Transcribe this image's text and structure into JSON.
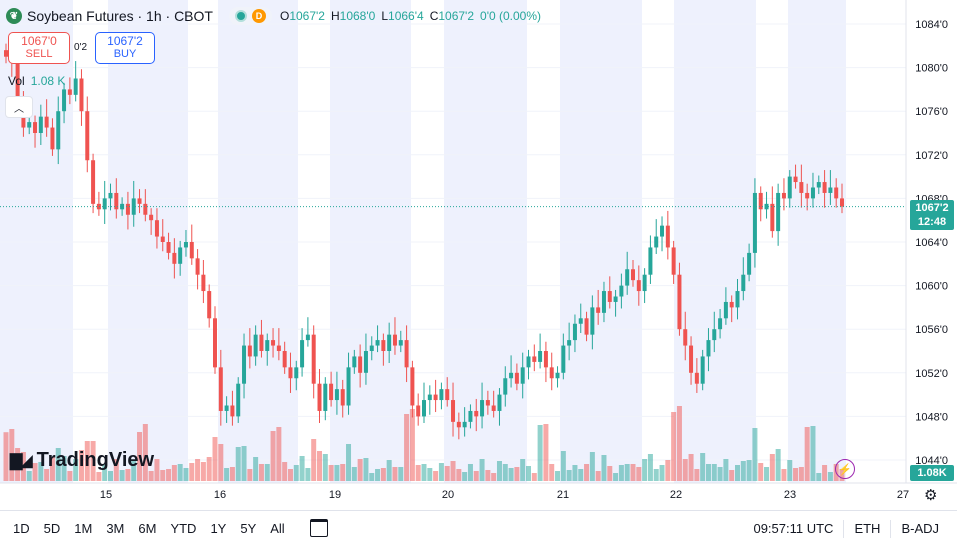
{
  "header": {
    "symbol_logo": "leaf-icon",
    "title": "Soybean Futures · 1h · CBOT",
    "status_badge": "D",
    "ohlc": {
      "o_label": "O",
      "o": "1067'2",
      "h_label": "H",
      "h": "1068'0",
      "l_label": "L",
      "l": "1066'4",
      "c_label": "C",
      "c": "1067'2",
      "change": "0'0 (0.00%)"
    }
  },
  "trade": {
    "sell_price": "1067'0",
    "sell_label": "SELL",
    "spread": "0'2",
    "buy_price": "1067'2",
    "buy_label": "BUY"
  },
  "volume_label": {
    "name": "Vol",
    "value": "1.08 K"
  },
  "brand": "TradingView",
  "last_price": {
    "price": "1067'2",
    "countdown": "12:48"
  },
  "last_volume": "1.08K",
  "bottom_bar": {
    "ranges": [
      "1D",
      "5D",
      "1M",
      "3M",
      "6M",
      "YTD",
      "1Y",
      "5Y",
      "All"
    ],
    "time": "09:57:11 UTC",
    "session": "ETH",
    "adjust": "B-ADJ"
  },
  "colors": {
    "up": "#26a69a",
    "down": "#ef5350",
    "session_shade": "#eef1fd",
    "grid": "#f0f3fa"
  },
  "chart_data": {
    "type": "candlestick",
    "title": "Soybean Futures · 1h · CBOT",
    "y_axis_ticks": [
      "1084'0",
      "1080'0",
      "1076'0",
      "1072'0",
      "1068'0",
      "1064'0",
      "1060'0",
      "1056'0",
      "1052'0",
      "1048'0",
      "1044'0"
    ],
    "y_axis_tick_values": [
      1084,
      1080,
      1076,
      1072,
      1068,
      1064,
      1060,
      1056,
      1052,
      1048,
      1044
    ],
    "x_axis_ticks": [
      "15",
      "16",
      "19",
      "20",
      "21",
      "22",
      "23",
      "27"
    ],
    "ylim": [
      1042.6,
      1085.4
    ],
    "last_close": 1067.25,
    "series_close": [
      1081.0,
      1080.5,
      1077.0,
      1074.5,
      1075.0,
      1074.0,
      1075.5,
      1074.5,
      1072.5,
      1076.0,
      1078.0,
      1077.5,
      1079.0,
      1076.0,
      1071.5,
      1067.5,
      1067.0,
      1068.0,
      1068.5,
      1067.0,
      1067.5,
      1066.5,
      1068.0,
      1067.5,
      1066.5,
      1066.0,
      1064.5,
      1064.0,
      1063.0,
      1062.0,
      1063.5,
      1064.0,
      1062.5,
      1061.0,
      1059.5,
      1057.0,
      1052.5,
      1048.5,
      1049.0,
      1048.0,
      1051.0,
      1054.5,
      1053.5,
      1055.5,
      1054.0,
      1055.0,
      1054.5,
      1054.0,
      1052.5,
      1051.5,
      1052.5,
      1055.0,
      1055.5,
      1051.0,
      1048.5,
      1051.0,
      1049.5,
      1050.5,
      1049.0,
      1052.5,
      1053.5,
      1052.0,
      1054.0,
      1054.5,
      1055.0,
      1054.0,
      1055.5,
      1054.5,
      1055.0,
      1052.5,
      1049.0,
      1048.0,
      1049.5,
      1050.0,
      1049.5,
      1050.5,
      1049.5,
      1047.5,
      1047.0,
      1047.5,
      1048.5,
      1048.0,
      1049.5,
      1049.0,
      1048.5,
      1050.0,
      1051.5,
      1052.0,
      1051.0,
      1052.5,
      1053.5,
      1053.0,
      1054.0,
      1052.5,
      1051.5,
      1052.0,
      1054.5,
      1055.0,
      1056.5,
      1057.0,
      1055.5,
      1058.0,
      1057.5,
      1059.5,
      1058.5,
      1059.0,
      1060.0,
      1061.5,
      1060.5,
      1059.5,
      1061.0,
      1063.5,
      1064.5,
      1065.5,
      1063.5,
      1061.0,
      1056.0,
      1054.5,
      1052.0,
      1051.0,
      1053.5,
      1055.0,
      1056.0,
      1057.0,
      1058.5,
      1058.0,
      1059.5,
      1061.0,
      1063.0,
      1068.5,
      1067.0,
      1067.5,
      1065.0,
      1068.5,
      1068.0,
      1070.0,
      1069.5,
      1068.5,
      1068.0,
      1069.0,
      1069.5,
      1068.5,
      1069.0,
      1068.0,
      1067.25
    ],
    "volume_unit": "K",
    "last_volume": 1.08,
    "legend": "top-left",
    "grid": true
  }
}
